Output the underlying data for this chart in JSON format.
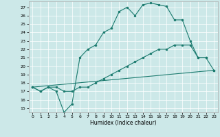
{
  "xlabel": "Humidex (Indice chaleur)",
  "background_color": "#cce8e8",
  "grid_color": "#ffffff",
  "line_color": "#1a7a6e",
  "xlim": [
    -0.5,
    23.5
  ],
  "ylim": [
    14.5,
    27.7
  ],
  "yticks": [
    15,
    16,
    17,
    18,
    19,
    20,
    21,
    22,
    23,
    24,
    25,
    26,
    27
  ],
  "xticks": [
    0,
    1,
    2,
    3,
    4,
    5,
    6,
    7,
    8,
    9,
    10,
    11,
    12,
    13,
    14,
    15,
    16,
    17,
    18,
    19,
    20,
    21,
    22,
    23
  ],
  "series": [
    {
      "x": [
        0,
        1,
        2,
        3,
        4,
        5,
        6,
        7,
        8,
        9,
        10,
        11,
        12,
        13,
        14,
        15,
        16,
        17,
        18,
        19,
        20,
        21,
        22
      ],
      "y": [
        17.5,
        17.0,
        17.5,
        17.0,
        14.5,
        15.5,
        21.0,
        22.0,
        22.5,
        24.0,
        24.5,
        26.5,
        27.0,
        26.0,
        27.3,
        27.5,
        27.3,
        27.1,
        25.5,
        25.5,
        23.0,
        21.0,
        21.0
      ]
    },
    {
      "x": [
        0,
        23
      ],
      "y": [
        17.5,
        19.5
      ]
    },
    {
      "x": [
        0,
        1,
        2,
        3,
        4,
        5,
        6,
        7,
        8,
        9,
        10,
        11,
        12,
        13,
        14,
        15,
        16,
        17,
        18,
        19,
        20,
        21,
        22,
        23
      ],
      "y": [
        17.5,
        17.0,
        17.5,
        17.5,
        17.0,
        17.0,
        17.5,
        17.5,
        18.0,
        18.5,
        19.0,
        19.5,
        20.0,
        20.5,
        21.0,
        21.5,
        22.0,
        22.0,
        22.5,
        22.5,
        22.5,
        21.0,
        21.0,
        19.5
      ]
    }
  ]
}
